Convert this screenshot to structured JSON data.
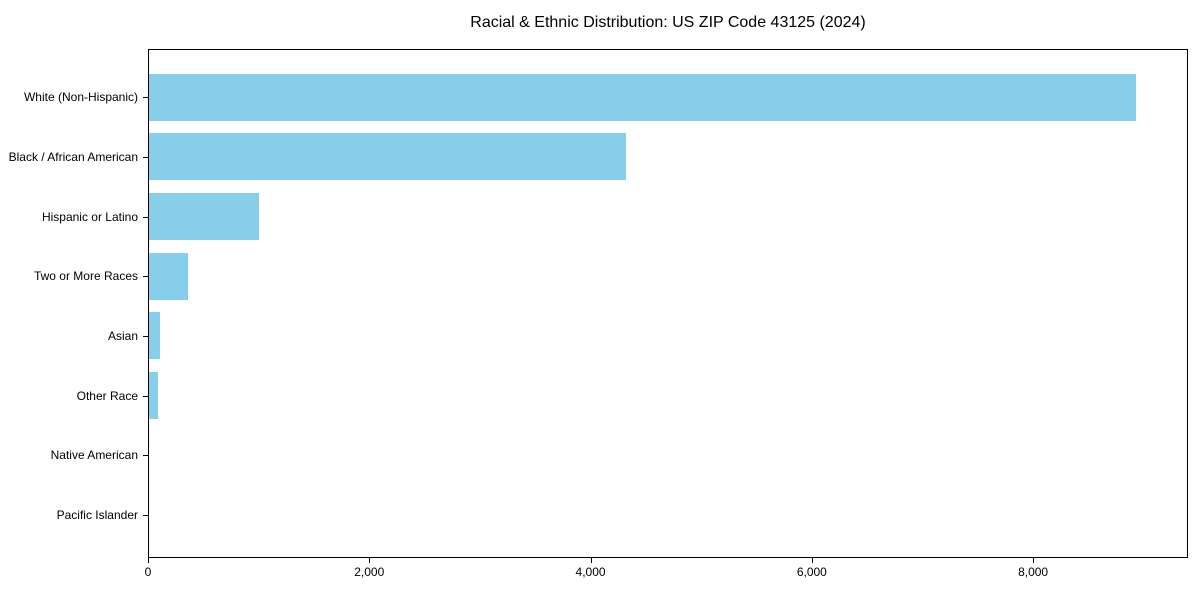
{
  "figure": {
    "background": "#ffffff",
    "text_color": "#000000",
    "frame_color": "#000000"
  },
  "chart_data": {
    "type": "bar",
    "orientation": "horizontal",
    "title": "Racial & Ethnic Distribution: US ZIP Code 43125 (2024)",
    "xlabel": "",
    "ylabel": "",
    "categories": [
      "White (Non-Hispanic)",
      "Black / African American",
      "Hispanic or Latino",
      "Two or More Races",
      "Asian",
      "Other Race",
      "Native American",
      "Pacific Islander"
    ],
    "values": [
      8940,
      4320,
      1000,
      350,
      100,
      80,
      0,
      0
    ],
    "xlim": [
      0,
      9400
    ],
    "xticks": [
      {
        "value": 0,
        "label": "0"
      },
      {
        "value": 2000,
        "label": "2,000"
      },
      {
        "value": 4000,
        "label": "4,000"
      },
      {
        "value": 6000,
        "label": "6,000"
      },
      {
        "value": 8000,
        "label": "8,000"
      }
    ],
    "bar_color": "#87CEEB",
    "grid": false,
    "legend_position": "none"
  }
}
